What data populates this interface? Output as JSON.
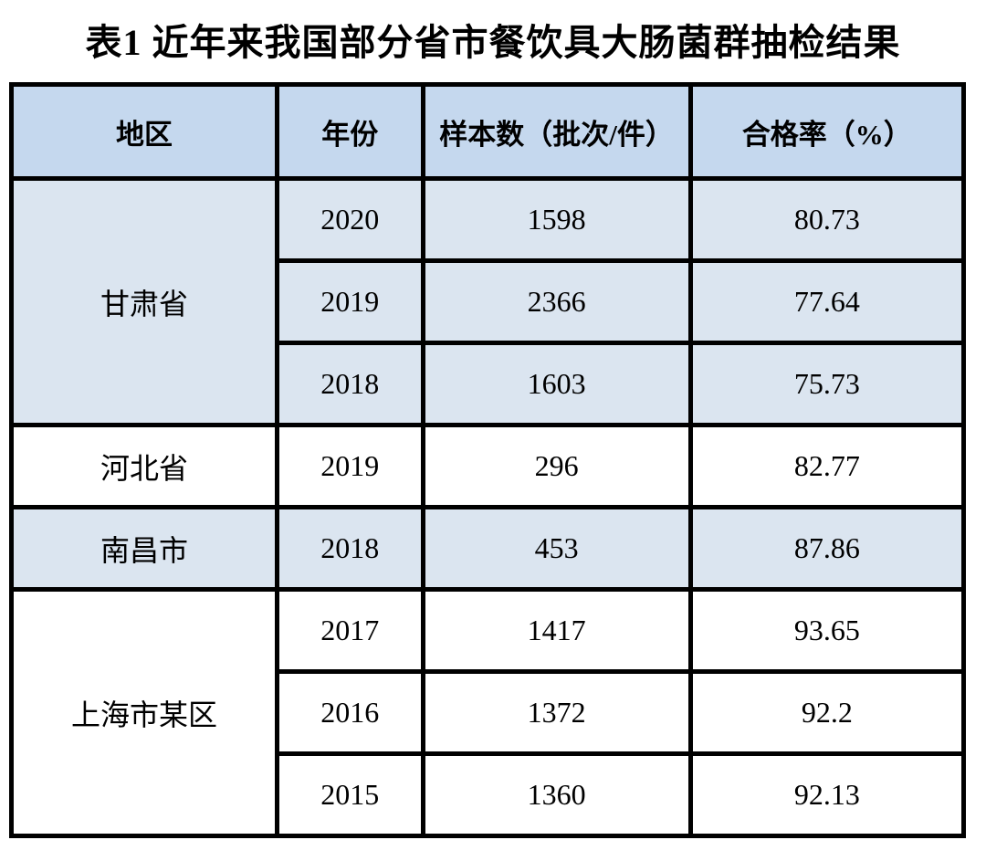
{
  "title": "表1 近年来我国部分省市餐饮具大肠菌群抽检结果",
  "colors": {
    "header_bg": "#c5d8ee",
    "shaded_row_bg": "#dbe5f0",
    "unshaded_row_bg": "#ffffff",
    "border": "#000000",
    "text": "#000000"
  },
  "table": {
    "headers": {
      "region": "地区",
      "year": "年份",
      "samples": "样本数（批次/件）",
      "pass_rate": "合格率（%）"
    },
    "groups": [
      {
        "region": "甘肃省",
        "shaded": true,
        "rows": [
          {
            "year": "2020",
            "samples": "1598",
            "pass_rate": "80.73"
          },
          {
            "year": "2019",
            "samples": "2366",
            "pass_rate": "77.64"
          },
          {
            "year": "2018",
            "samples": "1603",
            "pass_rate": "75.73"
          }
        ]
      },
      {
        "region": "河北省",
        "shaded": false,
        "rows": [
          {
            "year": "2019",
            "samples": "296",
            "pass_rate": "82.77"
          }
        ]
      },
      {
        "region": "南昌市",
        "shaded": true,
        "rows": [
          {
            "year": "2018",
            "samples": "453",
            "pass_rate": "87.86"
          }
        ]
      },
      {
        "region": "上海市某区",
        "shaded": false,
        "rows": [
          {
            "year": "2017",
            "samples": "1417",
            "pass_rate": "93.65"
          },
          {
            "year": "2016",
            "samples": "1372",
            "pass_rate": "92.2"
          },
          {
            "year": "2015",
            "samples": "1360",
            "pass_rate": "92.13"
          }
        ]
      }
    ]
  }
}
